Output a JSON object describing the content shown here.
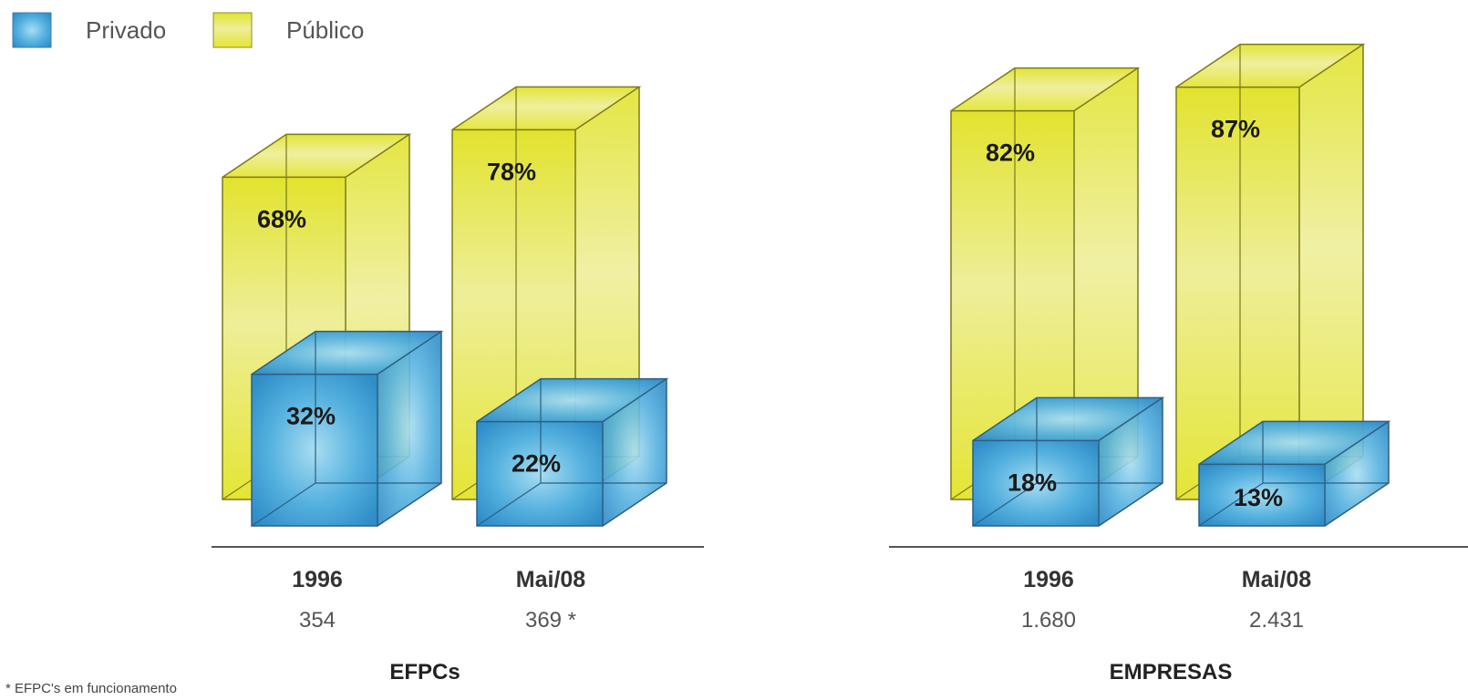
{
  "chart_data": [
    {
      "type": "bar",
      "group_label": "EFPCs",
      "categories": [
        "1996",
        "Mai/08"
      ],
      "counts": [
        "354",
        "369 *"
      ],
      "series": [
        {
          "name": "Privado",
          "values": [
            32,
            22
          ],
          "labels": [
            "32%",
            "22%"
          ]
        },
        {
          "name": "Público",
          "values": [
            68,
            78
          ],
          "labels": [
            "68%",
            "78%"
          ]
        }
      ]
    },
    {
      "type": "bar",
      "group_label": "EMPRESAS",
      "categories": [
        "1996",
        "Mai/08"
      ],
      "counts": [
        "1.680",
        "2.431"
      ],
      "series": [
        {
          "name": "Privado",
          "values": [
            18,
            13
          ],
          "labels": [
            "18%",
            "13%"
          ]
        },
        {
          "name": "Público",
          "values": [
            82,
            87
          ],
          "labels": [
            "82%",
            "87%"
          ]
        }
      ]
    }
  ],
  "legend": [
    {
      "name": "Privado",
      "color": "#4aa3d6"
    },
    {
      "name": "Público",
      "color": "#e6ea3a"
    }
  ],
  "footnote": "* EFPC's em funcionamento"
}
